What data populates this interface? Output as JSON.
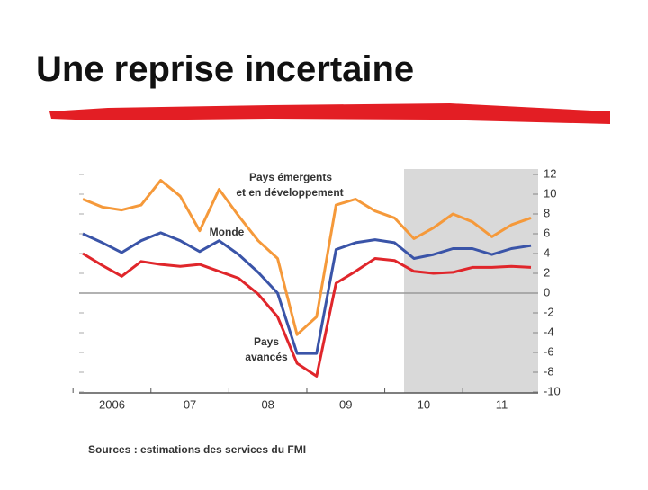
{
  "title": "Une reprise incertaine",
  "chart_data": {
    "type": "line",
    "categories": [
      null,
      "2006",
      null,
      null,
      null,
      "07",
      null,
      null,
      null,
      "08",
      null,
      null,
      null,
      "09",
      null,
      null,
      null,
      "10",
      null,
      null,
      null,
      "11",
      null,
      null
    ],
    "series": [
      {
        "name": [
          "Pays émergents",
          "et en développement"
        ],
        "color": "#f5993a",
        "values": [
          9.5,
          8.7,
          8.4,
          8.9,
          11.4,
          9.8,
          6.3,
          10.5,
          7.8,
          5.3,
          3.5,
          -4.2,
          -2.4,
          8.9,
          9.5,
          8.3,
          7.6,
          5.5,
          6.6,
          8,
          7.2,
          5.7,
          6.9,
          7.6
        ]
      },
      {
        "name": [
          "Monde"
        ],
        "color": "#3a54a8",
        "values": [
          6,
          5.1,
          4.1,
          5.3,
          6.1,
          5.3,
          4.2,
          5.3,
          3.9,
          2.1,
          0,
          -6.1,
          -6.1,
          4.4,
          5.1,
          5.4,
          5.1,
          3.5,
          3.9,
          4.5,
          4.5,
          3.9,
          4.5,
          4.8
        ]
      },
      {
        "name": [
          "Pays",
          "avancés"
        ],
        "color": "#e0262b",
        "values": [
          4,
          2.8,
          1.7,
          3.2,
          2.9,
          2.7,
          2.9,
          2.2,
          1.5,
          -0.1,
          -2.4,
          -7.1,
          -8.4,
          1,
          2.2,
          3.5,
          3.3,
          2.2,
          2,
          2.1,
          2.6,
          2.6,
          2.7,
          2.6
        ]
      }
    ],
    "ylim": [
      -10,
      12
    ],
    "yticks": [
      12,
      10,
      8,
      6,
      4,
      2,
      0,
      -2,
      -4,
      -6,
      -8,
      -10
    ],
    "source": "Sources : estimations des services du FMI"
  }
}
